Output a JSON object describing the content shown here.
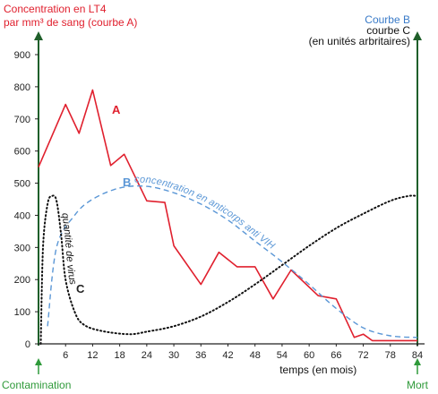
{
  "chart_data": {
    "type": "line",
    "title_left": [
      "Concentration en LT4",
      "par mm³ de sang (courbe A)"
    ],
    "title_right": [
      "Courbe B",
      "courbe C",
      "(en unités arbritaires)"
    ],
    "xlabel": "temps (en mois)",
    "x_ticks": [
      6,
      12,
      18,
      24,
      30,
      36,
      42,
      48,
      54,
      60,
      66,
      72,
      78,
      84
    ],
    "y_ticks": [
      0,
      100,
      200,
      300,
      400,
      500,
      600,
      700,
      800,
      900
    ],
    "xlim": [
      0,
      84
    ],
    "ylim": [
      0,
      900
    ],
    "grid": false,
    "events": [
      {
        "label": "Contamination",
        "x": 0
      },
      {
        "label": "Mort",
        "x": 84
      }
    ],
    "series": [
      {
        "name": "A",
        "color": "#e0202e",
        "style": "solid",
        "points": [
          [
            0,
            550
          ],
          [
            6,
            745
          ],
          [
            9,
            655
          ],
          [
            12,
            790
          ],
          [
            16,
            555
          ],
          [
            19,
            590
          ],
          [
            24,
            445
          ],
          [
            28,
            440
          ],
          [
            30,
            305
          ],
          [
            36,
            185
          ],
          [
            40,
            285
          ],
          [
            44,
            240
          ],
          [
            48,
            240
          ],
          [
            52,
            140
          ],
          [
            56,
            230
          ],
          [
            62,
            150
          ],
          [
            66,
            140
          ],
          [
            70,
            20
          ],
          [
            72,
            30
          ],
          [
            74,
            10
          ],
          [
            84,
            10
          ]
        ]
      },
      {
        "name": "B",
        "color": "#5b97d6",
        "style": "dashed",
        "points": [
          [
            2,
            55
          ],
          [
            4,
            300
          ],
          [
            8,
            400
          ],
          [
            12,
            450
          ],
          [
            18,
            485
          ],
          [
            24,
            490
          ],
          [
            30,
            470
          ],
          [
            36,
            435
          ],
          [
            42,
            385
          ],
          [
            48,
            320
          ],
          [
            54,
            255
          ],
          [
            60,
            185
          ],
          [
            66,
            110
          ],
          [
            72,
            50
          ],
          [
            78,
            25
          ],
          [
            84,
            20
          ]
        ]
      },
      {
        "name": "C",
        "color": "#111111",
        "style": "dotted",
        "points": [
          [
            0.5,
            0
          ],
          [
            1,
            300
          ],
          [
            2,
            435
          ],
          [
            3,
            460
          ],
          [
            4,
            445
          ],
          [
            5,
            340
          ],
          [
            6,
            200
          ],
          [
            8,
            100
          ],
          [
            10,
            60
          ],
          [
            14,
            40
          ],
          [
            20,
            30
          ],
          [
            24,
            38
          ],
          [
            30,
            55
          ],
          [
            36,
            85
          ],
          [
            42,
            130
          ],
          [
            48,
            185
          ],
          [
            54,
            245
          ],
          [
            60,
            305
          ],
          [
            66,
            360
          ],
          [
            72,
            405
          ],
          [
            78,
            445
          ],
          [
            82,
            460
          ],
          [
            84,
            460
          ]
        ]
      }
    ],
    "annotations": [
      {
        "text": "A",
        "series": "A"
      },
      {
        "text": "B",
        "series": "B"
      },
      {
        "text": "C",
        "series": "C"
      },
      {
        "text": "concentration en anticorps anti VIH",
        "series": "B"
      },
      {
        "text": "quantité de virus",
        "series": "C"
      }
    ]
  }
}
